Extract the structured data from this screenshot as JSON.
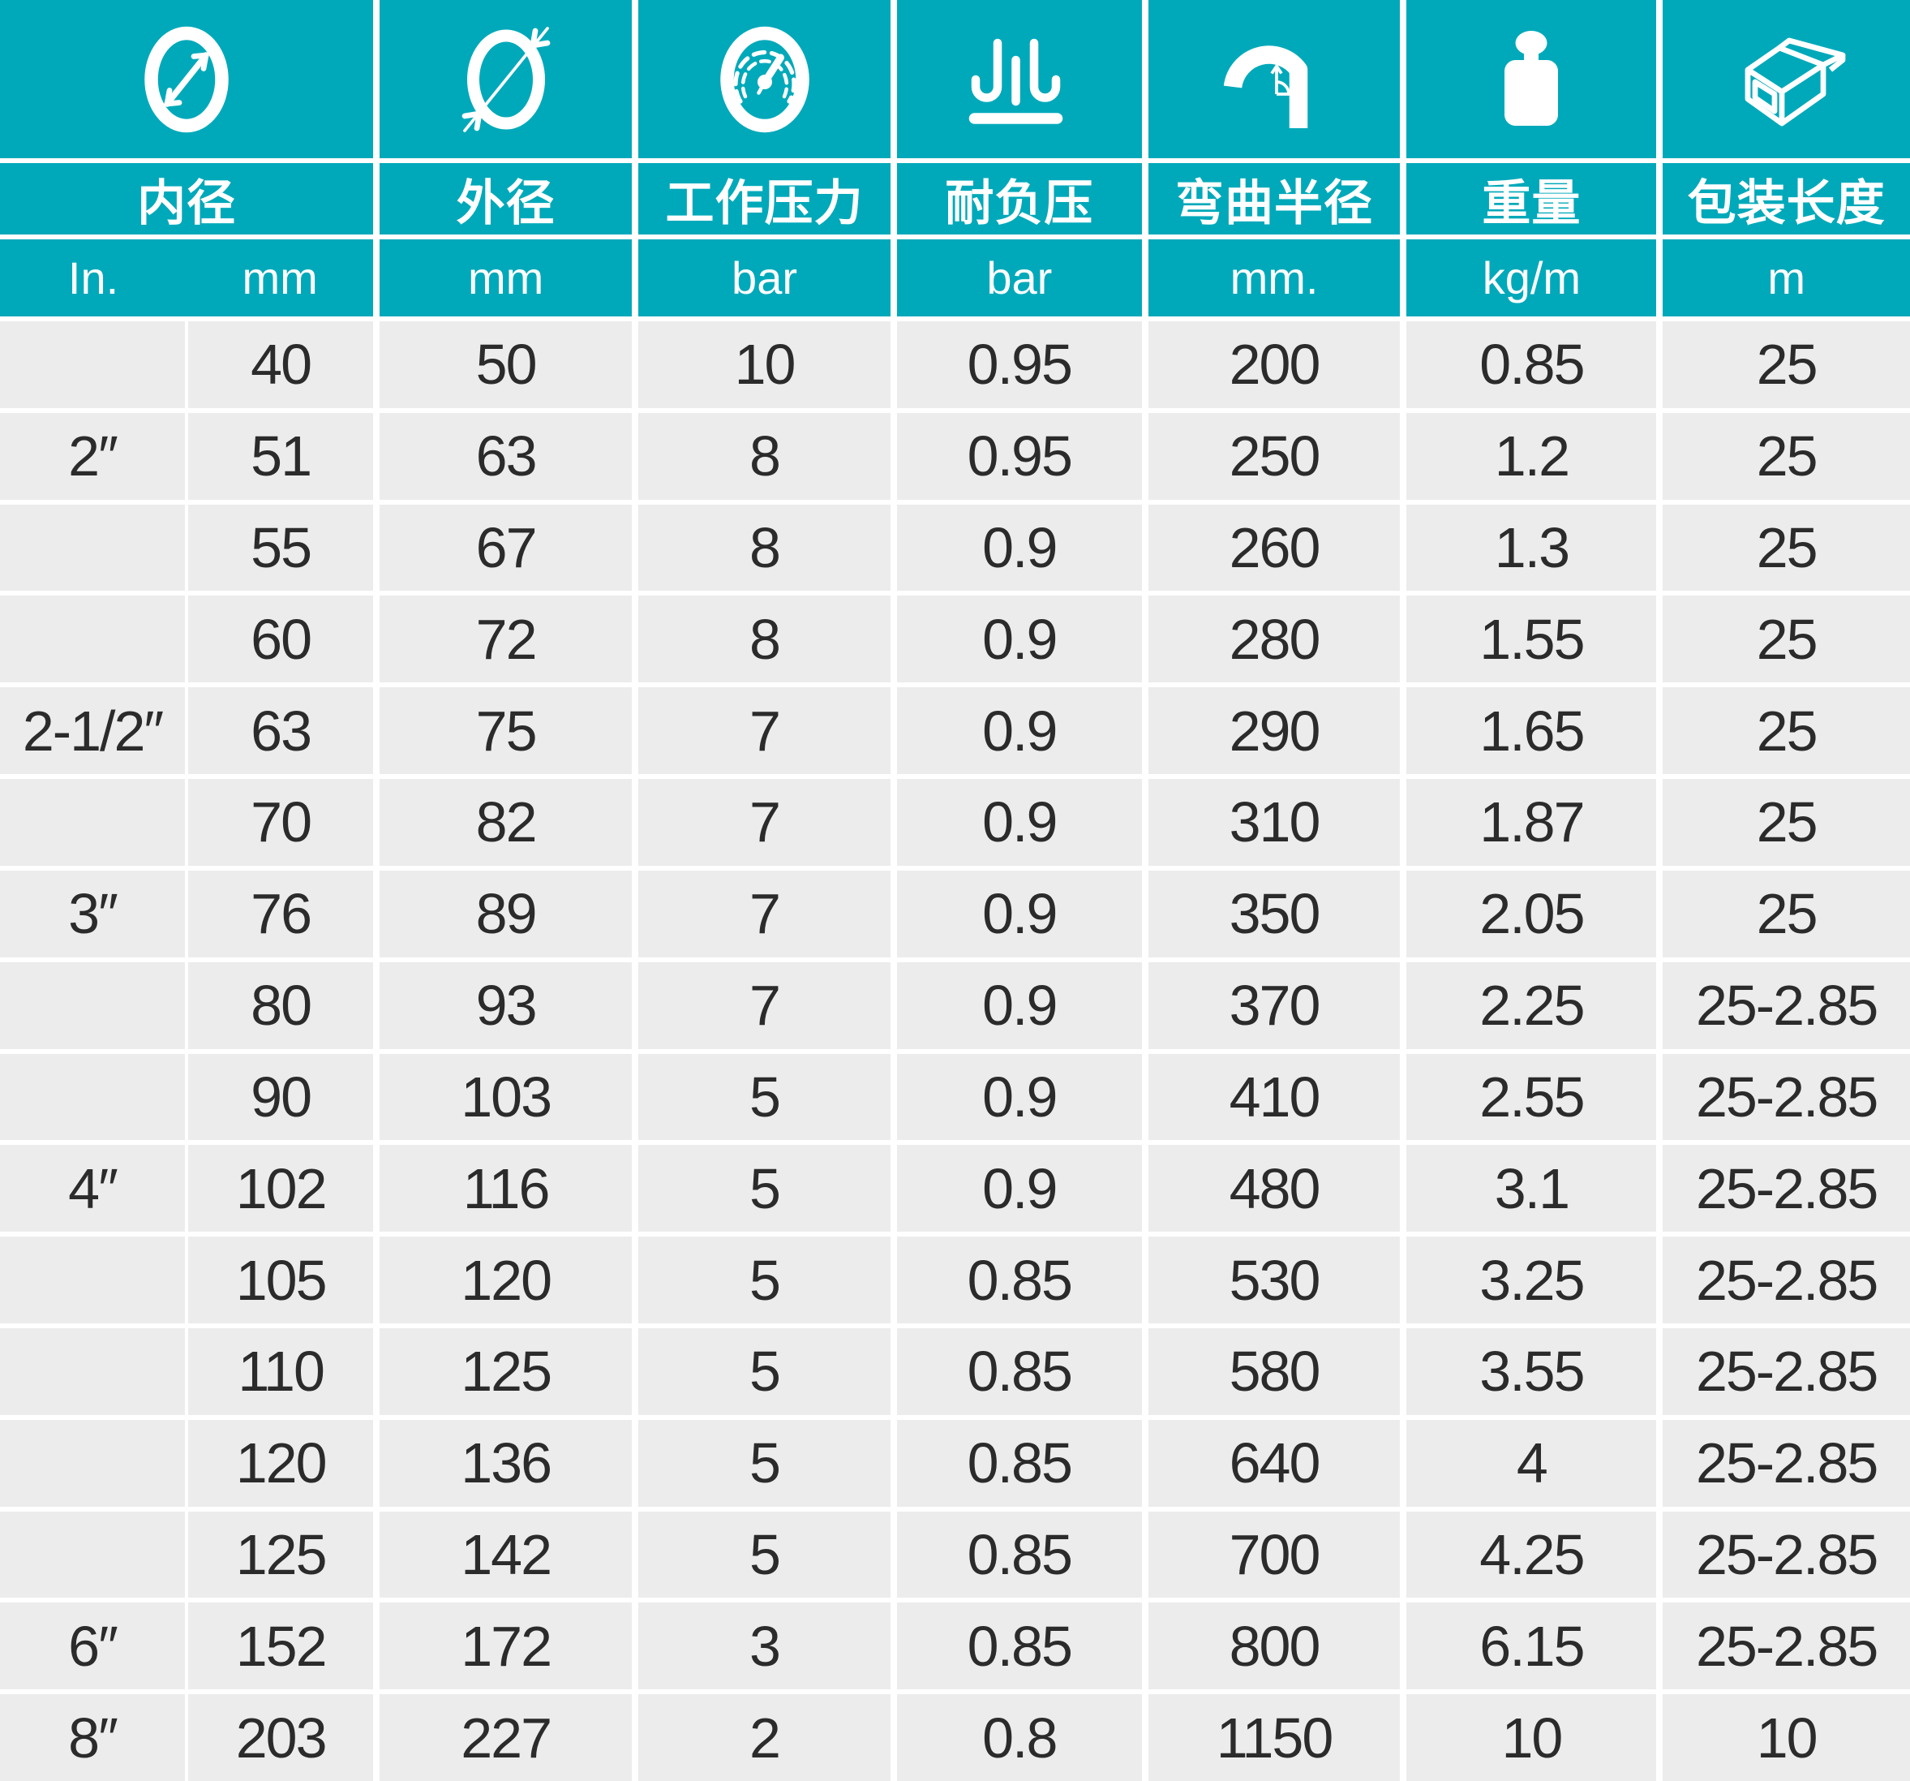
{
  "table": {
    "accent_color": "#00a9ba",
    "row_color": "#ececec",
    "text_color": "#2b2b2b",
    "columns": [
      {
        "icon": "inner-diameter-icon",
        "label": "内径",
        "units": [
          "In.",
          "mm"
        ]
      },
      {
        "icon": "outer-diameter-icon",
        "label": "外径",
        "unit": "mm"
      },
      {
        "icon": "pressure-gauge-icon",
        "label": "工作压力",
        "unit": "bar"
      },
      {
        "icon": "vacuum-icon",
        "label": "耐负压",
        "unit": "bar"
      },
      {
        "icon": "bend-radius-icon",
        "label": "弯曲半径",
        "unit": "mm."
      },
      {
        "icon": "weight-icon",
        "label": "重量",
        "unit": "kg/m"
      },
      {
        "icon": "package-icon",
        "label": "包装长度",
        "unit": "m"
      }
    ],
    "rows": [
      [
        "",
        "40",
        "50",
        "10",
        "0.95",
        "200",
        "0.85",
        "25"
      ],
      [
        "2″",
        "51",
        "63",
        "8",
        "0.95",
        "250",
        "1.2",
        "25"
      ],
      [
        "",
        "55",
        "67",
        "8",
        "0.9",
        "260",
        "1.3",
        "25"
      ],
      [
        "",
        "60",
        "72",
        "8",
        "0.9",
        "280",
        "1.55",
        "25"
      ],
      [
        "2-1/2″",
        "63",
        "75",
        "7",
        "0.9",
        "290",
        "1.65",
        "25"
      ],
      [
        "",
        "70",
        "82",
        "7",
        "0.9",
        "310",
        "1.87",
        "25"
      ],
      [
        "3″",
        "76",
        "89",
        "7",
        "0.9",
        "350",
        "2.05",
        "25"
      ],
      [
        "",
        "80",
        "93",
        "7",
        "0.9",
        "370",
        "2.25",
        "25-2.85"
      ],
      [
        "",
        "90",
        "103",
        "5",
        "0.9",
        "410",
        "2.55",
        "25-2.85"
      ],
      [
        "4″",
        "102",
        "116",
        "5",
        "0.9",
        "480",
        "3.1",
        "25-2.85"
      ],
      [
        "",
        "105",
        "120",
        "5",
        "0.85",
        "530",
        "3.25",
        "25-2.85"
      ],
      [
        "",
        "110",
        "125",
        "5",
        "0.85",
        "580",
        "3.55",
        "25-2.85"
      ],
      [
        "",
        "120",
        "136",
        "5",
        "0.85",
        "640",
        "4",
        "25-2.85"
      ],
      [
        "",
        "125",
        "142",
        "5",
        "0.85",
        "700",
        "4.25",
        "25-2.85"
      ],
      [
        "6″",
        "152",
        "172",
        "3",
        "0.85",
        "800",
        "6.15",
        "25-2.85"
      ],
      [
        "8″",
        "203",
        "227",
        "2",
        "0.8",
        "1150",
        "10",
        "10"
      ]
    ]
  }
}
